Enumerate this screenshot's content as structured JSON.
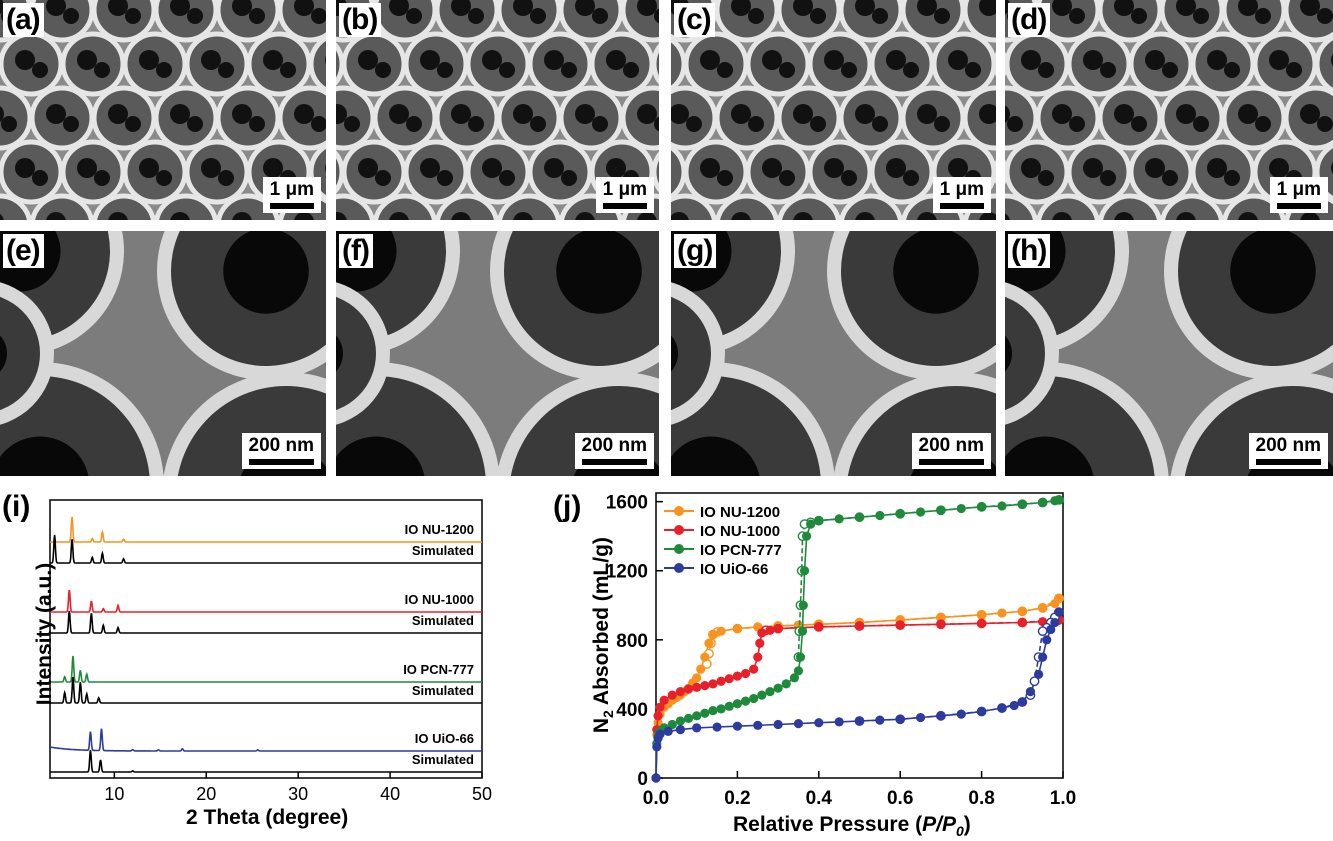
{
  "panels_sem": [
    {
      "label": "(a)",
      "scale": "1 μm"
    },
    {
      "label": "(b)",
      "scale": "1 μm"
    },
    {
      "label": "(c)",
      "scale": "1 μm"
    },
    {
      "label": "(d)",
      "scale": "1 μm"
    },
    {
      "label": "(e)",
      "scale": "200 nm"
    },
    {
      "label": "(f)",
      "scale": "200 nm"
    },
    {
      "label": "(g)",
      "scale": "200 nm"
    },
    {
      "label": "(h)",
      "scale": "200 nm"
    }
  ],
  "chart_data": [
    {
      "panel": "(i)",
      "type": "line",
      "xlabel": "2 Theta (degree)",
      "ylabel": "Intensity (a.u.)",
      "xlim": [
        3,
        50
      ],
      "xticks": [
        10,
        20,
        30,
        40,
        50
      ],
      "series": [
        {
          "name": "IO NU-1200",
          "color": "#f7931e",
          "baseline": 0.0,
          "peaks": [
            [
              5.4,
              0.9
            ],
            [
              7.6,
              0.12
            ],
            [
              8.7,
              0.35
            ],
            [
              11.0,
              0.1
            ]
          ]
        },
        {
          "name": "Simulated",
          "color": "#000000",
          "baseline": 0.0,
          "peaks": [
            [
              3.5,
              1.0
            ],
            [
              5.4,
              0.85
            ],
            [
              7.6,
              0.2
            ],
            [
              8.7,
              0.35
            ],
            [
              11.0,
              0.15
            ]
          ]
        },
        {
          "name": "IO NU-1000",
          "color": "#e8202a",
          "baseline": 0.0,
          "peaks": [
            [
              5.1,
              1.0
            ],
            [
              7.5,
              0.5
            ],
            [
              8.8,
              0.15
            ],
            [
              10.4,
              0.3
            ]
          ]
        },
        {
          "name": "Simulated",
          "color": "#000000",
          "baseline": 0.0,
          "peaks": [
            [
              5.1,
              1.0
            ],
            [
              7.5,
              0.9
            ],
            [
              8.8,
              0.35
            ],
            [
              10.4,
              0.25
            ]
          ]
        },
        {
          "name": "IO PCN-777",
          "color": "#1f8a3b",
          "baseline": 0.0,
          "peaks": [
            [
              4.6,
              0.2
            ],
            [
              5.5,
              1.0
            ],
            [
              6.3,
              0.45
            ],
            [
              7.0,
              0.3
            ]
          ]
        },
        {
          "name": "Simulated",
          "color": "#000000",
          "baseline": 0.0,
          "peaks": [
            [
              4.6,
              0.4
            ],
            [
              5.5,
              1.0
            ],
            [
              6.3,
              0.8
            ],
            [
              7.0,
              0.35
            ],
            [
              8.3,
              0.2
            ]
          ]
        },
        {
          "name": "IO UiO-66",
          "color": "#2e3b9e",
          "baseline": 0.0,
          "peaks": [
            [
              7.4,
              0.85
            ],
            [
              8.6,
              1.0
            ],
            [
              12.0,
              0.06
            ],
            [
              14.8,
              0.05
            ],
            [
              17.4,
              0.1
            ],
            [
              25.6,
              0.05
            ]
          ]
        },
        {
          "name": "Simulated",
          "color": "#000000",
          "baseline": 0.0,
          "peaks": [
            [
              7.4,
              1.0
            ],
            [
              8.5,
              0.55
            ],
            [
              12.0,
              0.05
            ]
          ]
        }
      ],
      "annotations": [
        "IO NU-1200",
        "Simulated",
        "IO NU-1000",
        "Simulated",
        "IO PCN-777",
        "Simulated",
        "IO UiO-66",
        "Simulated"
      ]
    },
    {
      "panel": "(j)",
      "type": "line",
      "xlabel": "Relative Pressure (P/P0)",
      "xlabel_parts": [
        "Relative Pressure (",
        "P/P",
        "0",
        ")"
      ],
      "ylabel": "N2 Absorbed (mL/g)",
      "ylabel_parts": [
        "N",
        "2",
        " Absorbed (mL/g)"
      ],
      "xlim": [
        0,
        1.0
      ],
      "ylim": [
        0,
        1650
      ],
      "xticks": [
        0.0,
        0.2,
        0.4,
        0.6,
        0.8,
        1.0
      ],
      "yticks": [
        0,
        400,
        800,
        1200,
        1600
      ],
      "legend_position": "top-left",
      "series": [
        {
          "name": "IO NU-1200",
          "color": "#f7931e",
          "adsorption": [
            [
              0.0,
              0
            ],
            [
              0.002,
              250
            ],
            [
              0.005,
              320
            ],
            [
              0.01,
              370
            ],
            [
              0.02,
              410
            ],
            [
              0.03,
              430
            ],
            [
              0.04,
              450
            ],
            [
              0.05,
              465
            ],
            [
              0.06,
              480
            ],
            [
              0.07,
              500
            ],
            [
              0.08,
              520
            ],
            [
              0.09,
              550
            ],
            [
              0.1,
              580
            ],
            [
              0.11,
              630
            ],
            [
              0.12,
              700
            ],
            [
              0.13,
              780
            ],
            [
              0.14,
              830
            ],
            [
              0.16,
              850
            ],
            [
              0.2,
              865
            ],
            [
              0.25,
              875
            ],
            [
              0.3,
              880
            ],
            [
              0.35,
              885
            ],
            [
              0.4,
              890
            ],
            [
              0.5,
              900
            ],
            [
              0.6,
              915
            ],
            [
              0.7,
              930
            ],
            [
              0.8,
              945
            ],
            [
              0.85,
              955
            ],
            [
              0.9,
              965
            ],
            [
              0.95,
              985
            ],
            [
              0.98,
              1010
            ],
            [
              0.99,
              1040
            ]
          ],
          "desorption": [
            [
              0.99,
              1040
            ],
            [
              0.95,
              985
            ],
            [
              0.9,
              965
            ],
            [
              0.8,
              945
            ],
            [
              0.7,
              930
            ],
            [
              0.6,
              915
            ],
            [
              0.5,
              900
            ],
            [
              0.4,
              890
            ],
            [
              0.3,
              880
            ],
            [
              0.2,
              865
            ],
            [
              0.15,
              845
            ],
            [
              0.14,
              830
            ],
            [
              0.135,
              780
            ],
            [
              0.13,
              720
            ],
            [
              0.125,
              660
            ]
          ]
        },
        {
          "name": "IO NU-1000",
          "color": "#e8202a",
          "adsorption": [
            [
              0.0,
              0
            ],
            [
              0.002,
              280
            ],
            [
              0.005,
              360
            ],
            [
              0.01,
              410
            ],
            [
              0.02,
              450
            ],
            [
              0.04,
              480
            ],
            [
              0.06,
              500
            ],
            [
              0.08,
              515
            ],
            [
              0.1,
              525
            ],
            [
              0.12,
              535
            ],
            [
              0.14,
              545
            ],
            [
              0.16,
              560
            ],
            [
              0.18,
              575
            ],
            [
              0.2,
              590
            ],
            [
              0.22,
              605
            ],
            [
              0.24,
              630
            ],
            [
              0.25,
              700
            ],
            [
              0.255,
              780
            ],
            [
              0.26,
              840
            ],
            [
              0.28,
              855
            ],
            [
              0.3,
              865
            ],
            [
              0.4,
              875
            ],
            [
              0.5,
              880
            ],
            [
              0.6,
              885
            ],
            [
              0.7,
              890
            ],
            [
              0.8,
              895
            ],
            [
              0.9,
              900
            ],
            [
              0.95,
              905
            ],
            [
              0.98,
              910
            ],
            [
              0.99,
              915
            ]
          ],
          "desorption": [
            [
              0.99,
              915
            ],
            [
              0.9,
              900
            ],
            [
              0.8,
              895
            ],
            [
              0.7,
              890
            ],
            [
              0.6,
              885
            ],
            [
              0.5,
              880
            ],
            [
              0.4,
              875
            ],
            [
              0.3,
              865
            ],
            [
              0.27,
              855
            ]
          ]
        },
        {
          "name": "IO PCN-777",
          "color": "#1f8a3b",
          "adsorption": [
            [
              0.0,
              0
            ],
            [
              0.002,
              200
            ],
            [
              0.005,
              250
            ],
            [
              0.01,
              270
            ],
            [
              0.02,
              290
            ],
            [
              0.04,
              310
            ],
            [
              0.06,
              330
            ],
            [
              0.08,
              345
            ],
            [
              0.1,
              360
            ],
            [
              0.12,
              375
            ],
            [
              0.14,
              390
            ],
            [
              0.16,
              400
            ],
            [
              0.18,
              415
            ],
            [
              0.2,
              430
            ],
            [
              0.22,
              445
            ],
            [
              0.24,
              460
            ],
            [
              0.26,
              480
            ],
            [
              0.28,
              500
            ],
            [
              0.3,
              520
            ],
            [
              0.32,
              545
            ],
            [
              0.34,
              580
            ],
            [
              0.35,
              620
            ],
            [
              0.355,
              700
            ],
            [
              0.36,
              850
            ],
            [
              0.362,
              1000
            ],
            [
              0.365,
              1200
            ],
            [
              0.37,
              1400
            ],
            [
              0.38,
              1470
            ],
            [
              0.4,
              1490
            ],
            [
              0.45,
              1500
            ],
            [
              0.5,
              1510
            ],
            [
              0.55,
              1520
            ],
            [
              0.6,
              1530
            ],
            [
              0.65,
              1540
            ],
            [
              0.7,
              1550
            ],
            [
              0.75,
              1560
            ],
            [
              0.8,
              1570
            ],
            [
              0.85,
              1575
            ],
            [
              0.9,
              1585
            ],
            [
              0.95,
              1595
            ],
            [
              0.98,
              1605
            ],
            [
              0.99,
              1610
            ]
          ],
          "desorption": [
            [
              0.99,
              1610
            ],
            [
              0.95,
              1595
            ],
            [
              0.9,
              1585
            ],
            [
              0.8,
              1570
            ],
            [
              0.7,
              1550
            ],
            [
              0.6,
              1530
            ],
            [
              0.5,
              1510
            ],
            [
              0.4,
              1490
            ],
            [
              0.38,
              1480
            ],
            [
              0.365,
              1470
            ],
            [
              0.36,
              1400
            ],
            [
              0.358,
              1200
            ],
            [
              0.355,
              1000
            ],
            [
              0.352,
              850
            ],
            [
              0.35,
              700
            ]
          ]
        },
        {
          "name": "IO UiO-66",
          "color": "#2e3b9e",
          "adsorption": [
            [
              0.0,
              0
            ],
            [
              0.002,
              180
            ],
            [
              0.005,
              230
            ],
            [
              0.01,
              255
            ],
            [
              0.03,
              270
            ],
            [
              0.06,
              280
            ],
            [
              0.1,
              290
            ],
            [
              0.15,
              295
            ],
            [
              0.2,
              300
            ],
            [
              0.25,
              305
            ],
            [
              0.3,
              310
            ],
            [
              0.35,
              315
            ],
            [
              0.4,
              320
            ],
            [
              0.45,
              325
            ],
            [
              0.5,
              330
            ],
            [
              0.55,
              335
            ],
            [
              0.6,
              340
            ],
            [
              0.65,
              350
            ],
            [
              0.7,
              360
            ],
            [
              0.75,
              370
            ],
            [
              0.8,
              385
            ],
            [
              0.85,
              405
            ],
            [
              0.88,
              420
            ],
            [
              0.9,
              440
            ],
            [
              0.92,
              500
            ],
            [
              0.94,
              600
            ],
            [
              0.95,
              700
            ],
            [
              0.96,
              800
            ],
            [
              0.97,
              860
            ],
            [
              0.98,
              900
            ],
            [
              0.99,
              960
            ]
          ],
          "desorption": [
            [
              0.99,
              960
            ],
            [
              0.98,
              930
            ],
            [
              0.97,
              900
            ],
            [
              0.96,
              870
            ],
            [
              0.95,
              850
            ],
            [
              0.94,
              700
            ],
            [
              0.93,
              560
            ],
            [
              0.92,
              480
            ],
            [
              0.9,
              440
            ],
            [
              0.85,
              405
            ],
            [
              0.8,
              385
            ],
            [
              0.7,
              360
            ],
            [
              0.6,
              340
            ],
            [
              0.5,
              330
            ]
          ]
        }
      ]
    }
  ]
}
